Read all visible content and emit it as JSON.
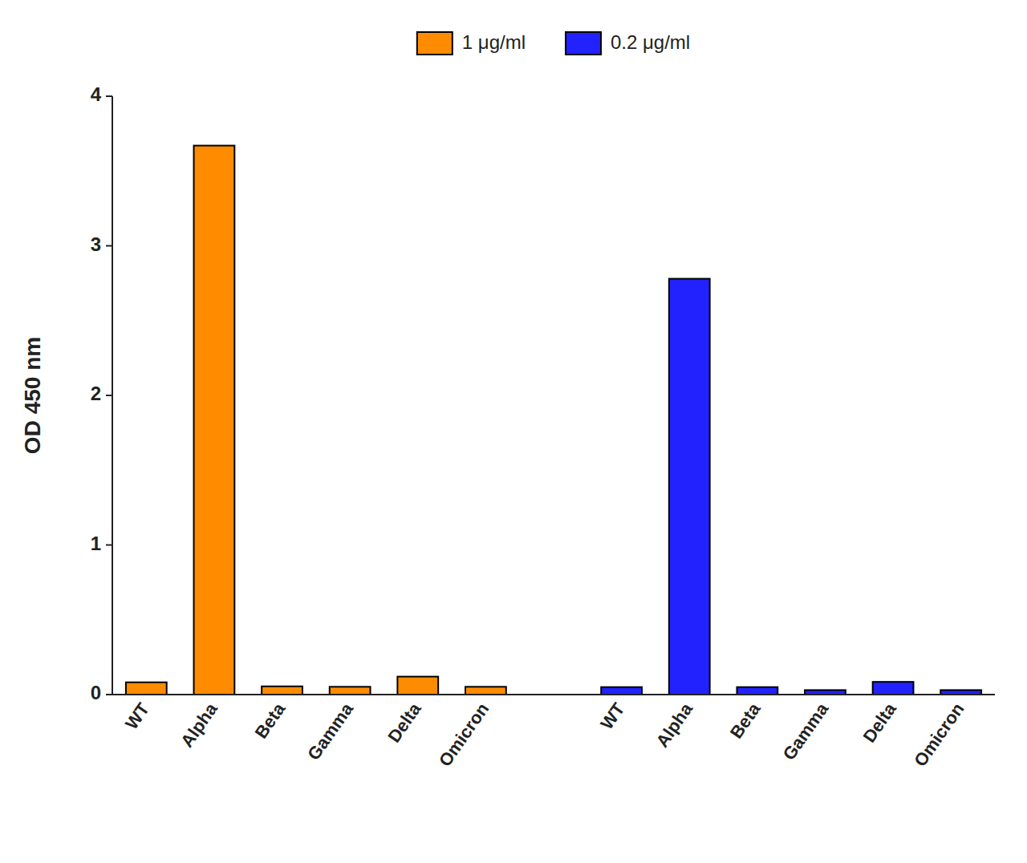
{
  "chart_data": {
    "type": "bar",
    "categories": [
      "WT",
      "Alpha",
      "Beta",
      "Gamma",
      "Delta",
      "Omicron",
      "WT",
      "Alpha",
      "Beta",
      "Gamma",
      "Delta",
      "Omicron"
    ],
    "series": [
      {
        "name": "1 μg/ml",
        "color": "#FF8C00",
        "values": [
          0.082,
          3.67,
          0.055,
          0.052,
          0.12,
          0.052,
          null,
          null,
          null,
          null,
          null,
          null
        ]
      },
      {
        "name": "0.2 μg/ml",
        "color": "#2222FF",
        "values": [
          null,
          null,
          null,
          null,
          null,
          null,
          0.05,
          2.78,
          0.05,
          0.03,
          0.085,
          0.03
        ]
      }
    ],
    "y_label": "OD 450 nm",
    "ylim": [
      0,
      4.0
    ],
    "yticks": [
      0,
      1,
      2,
      3,
      4
    ],
    "grid": false,
    "legend": "top"
  }
}
